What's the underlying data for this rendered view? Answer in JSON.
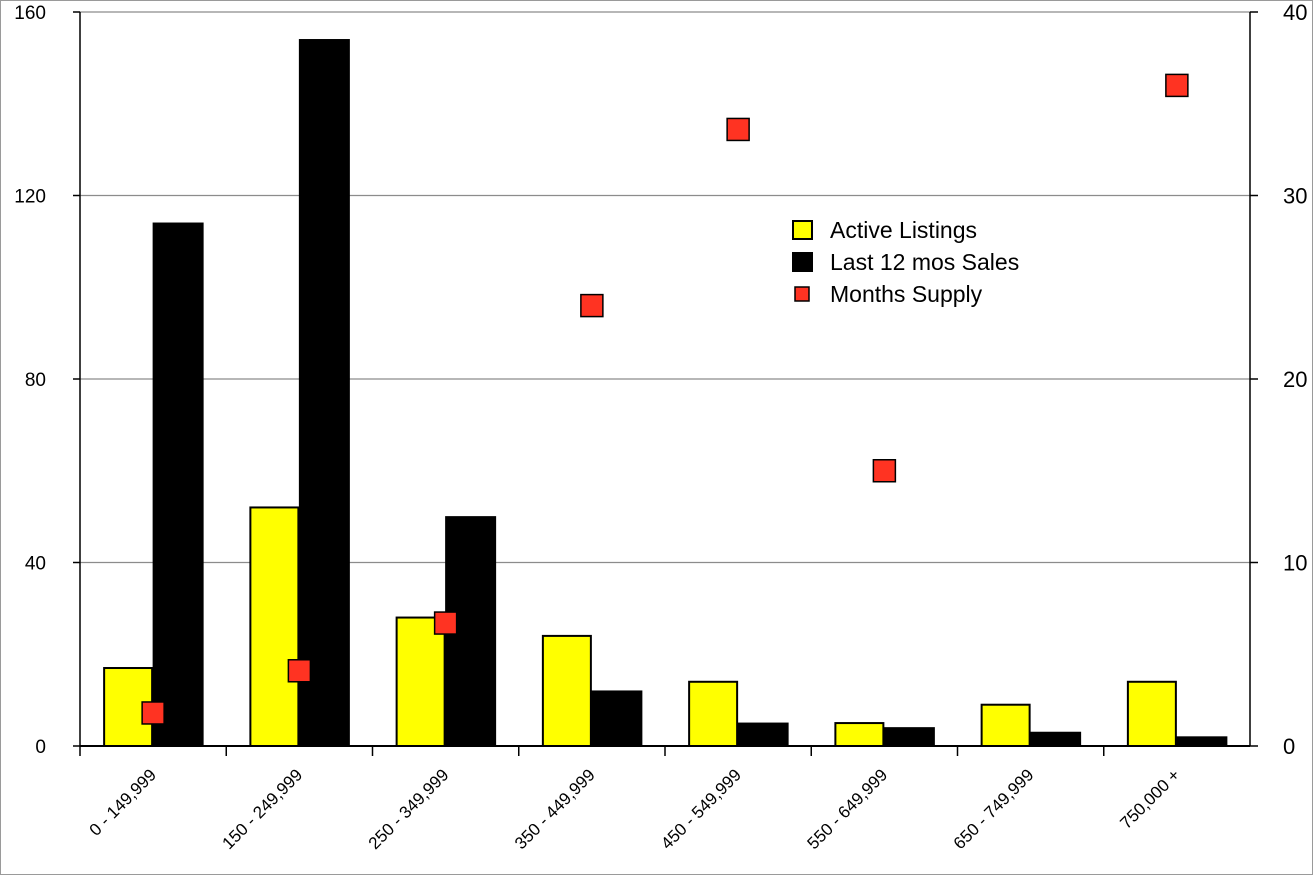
{
  "chart_data": {
    "type": "bar",
    "categories": [
      "0 - 149,999",
      "150 - 249,999",
      "250 - 349,999",
      "350 - 449,999",
      "450 - 549,999",
      "550 - 649,999",
      "650 - 749,999",
      "750,000 +"
    ],
    "series": [
      {
        "name": "Active Listings",
        "type": "bar",
        "axis": "left",
        "color": "#ffff00",
        "values": [
          17,
          52,
          28,
          24,
          14,
          5,
          9,
          14
        ]
      },
      {
        "name": "Last 12 mos Sales",
        "type": "bar",
        "axis": "left",
        "color": "#000000",
        "values": [
          114,
          154,
          50,
          12,
          5,
          4,
          3,
          2
        ]
      },
      {
        "name": "Months Supply",
        "type": "scatter",
        "axis": "right",
        "color": "#ff3322",
        "values": [
          1.8,
          4.1,
          6.7,
          24.0,
          33.6,
          15.0,
          null,
          36.0
        ]
      }
    ],
    "left_axis": {
      "min": 0,
      "max": 160,
      "ticks": [
        "0",
        "40",
        "80",
        "120",
        "160"
      ]
    },
    "right_axis": {
      "min": 0,
      "max": 40,
      "ticks": [
        "0",
        "10",
        "20",
        "30",
        "40"
      ]
    },
    "grid": true,
    "legend_position": "upper-right-inside"
  }
}
